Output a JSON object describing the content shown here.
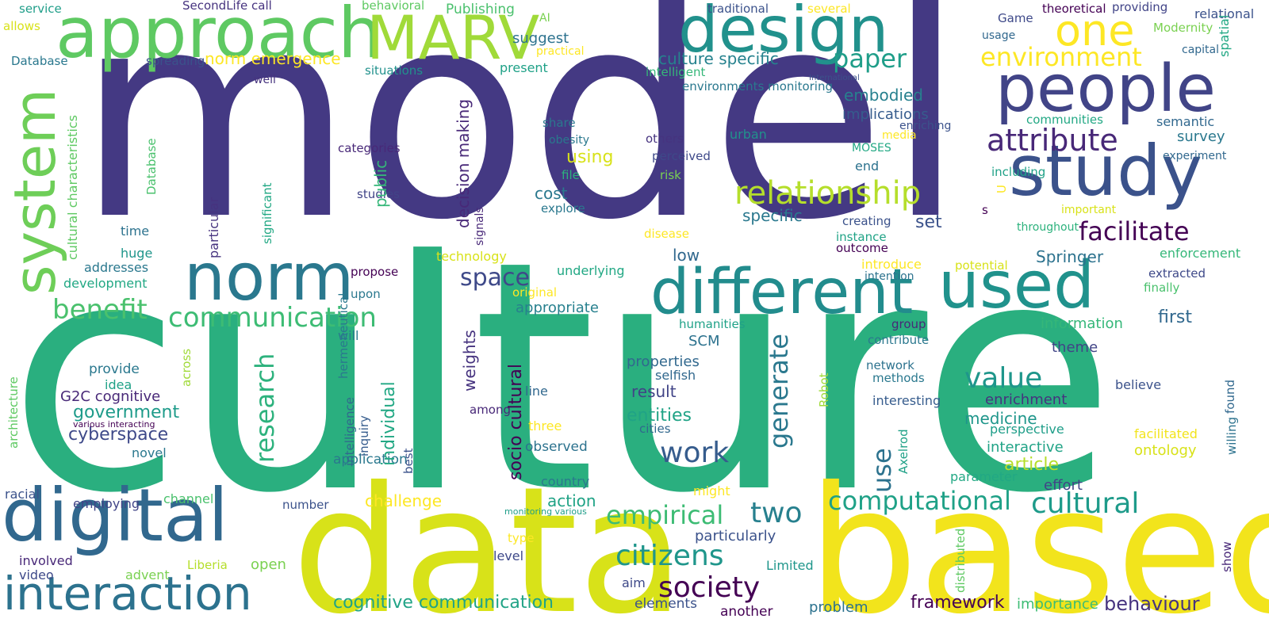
{
  "palette": {
    "dark_purple": "#440154",
    "indigo": "#443983",
    "blue": "#31688e",
    "teal": "#21918c",
    "green": "#35b779",
    "light_green": "#6ece58",
    "lime": "#b5de2b",
    "yellow": "#fde725"
  },
  "words": [
    {
      "text": "model",
      "color": "#443983"
    },
    {
      "text": "culture",
      "color": "#2aaf7f"
    },
    {
      "text": "data",
      "color": "#d8e219"
    },
    {
      "text": "based",
      "color": "#f2e41c"
    },
    {
      "text": "design",
      "color": "#21918c"
    },
    {
      "text": "approach",
      "color": "#5ec962"
    },
    {
      "text": "MARV",
      "color": "#a0da39"
    },
    {
      "text": "people",
      "color": "#414487"
    },
    {
      "text": "study",
      "color": "#3b528b"
    },
    {
      "text": "one",
      "color": "#fde725"
    },
    {
      "text": "norm",
      "color": "#2a788e"
    },
    {
      "text": "different",
      "color": "#228c8d"
    },
    {
      "text": "used",
      "color": "#20928c"
    },
    {
      "text": "digital",
      "color": "#31688e"
    },
    {
      "text": "interaction",
      "color": "#2c728e"
    },
    {
      "text": "system",
      "color": "#6ece58"
    },
    {
      "text": "relationship",
      "color": "#b5de2b"
    },
    {
      "text": "attribute",
      "color": "#482878"
    },
    {
      "text": "environment",
      "color": "#fde725"
    },
    {
      "text": "paper",
      "color": "#1f9e89"
    },
    {
      "text": "facilitate",
      "color": "#440154"
    },
    {
      "text": "communication",
      "color": "#3dbc74"
    },
    {
      "text": "benefit",
      "color": "#4ac16d"
    },
    {
      "text": "research",
      "color": "#2db27d"
    },
    {
      "text": "generate",
      "color": "#2a788e"
    },
    {
      "text": "computational",
      "color": "#1fa187"
    },
    {
      "text": "cultural",
      "color": "#1e9b8a"
    },
    {
      "text": "empirical",
      "color": "#3dbc74"
    },
    {
      "text": "two",
      "color": "#27808e"
    },
    {
      "text": "society",
      "color": "#440154"
    },
    {
      "text": "citizens",
      "color": "#1f968b"
    },
    {
      "text": "value",
      "color": "#1f968b"
    },
    {
      "text": "work",
      "color": "#365c8d"
    },
    {
      "text": "space",
      "color": "#3e4989"
    },
    {
      "text": "use",
      "color": "#2c728e"
    },
    {
      "text": "norm emergence",
      "color": "#fde725"
    },
    {
      "text": "culture specific",
      "color": "#26828e"
    },
    {
      "text": "cognitive communication",
      "color": "#20a386"
    },
    {
      "text": "framework",
      "color": "#440154"
    },
    {
      "text": "behaviour",
      "color": "#46337f"
    },
    {
      "text": "government",
      "color": "#1e9b8a"
    },
    {
      "text": "cyberspace",
      "color": "#3e4989"
    },
    {
      "text": "individual",
      "color": "#22a884"
    },
    {
      "text": "socio cultural",
      "color": "#440154"
    },
    {
      "text": "decision making",
      "color": "#482878"
    },
    {
      "text": "public",
      "color": "#35b779"
    },
    {
      "text": "weights",
      "color": "#46337f"
    },
    {
      "text": "using",
      "color": "#d8e219"
    },
    {
      "text": "cost",
      "color": "#2a788e"
    },
    {
      "text": "embodied",
      "color": "#27808e"
    },
    {
      "text": "implications",
      "color": "#365c8d"
    },
    {
      "text": "survey",
      "color": "#2a788e"
    },
    {
      "text": "semantic",
      "color": "#31688e"
    },
    {
      "text": "entities",
      "color": "#20a386"
    },
    {
      "text": "result",
      "color": "#414487"
    },
    {
      "text": "properties",
      "color": "#31688e"
    },
    {
      "text": "selfish",
      "color": "#31688e"
    },
    {
      "text": "SCM",
      "color": "#2c728e"
    },
    {
      "text": "low",
      "color": "#31688e"
    },
    {
      "text": "set",
      "color": "#3b528b"
    },
    {
      "text": "specific",
      "color": "#2a788e"
    },
    {
      "text": "Springer",
      "color": "#2c728e"
    },
    {
      "text": "first",
      "color": "#31688e"
    },
    {
      "text": "information",
      "color": "#35b779"
    },
    {
      "text": "theme",
      "color": "#414487"
    },
    {
      "text": "medicine",
      "color": "#1f968b"
    },
    {
      "text": "enrichment",
      "color": "#46337f"
    },
    {
      "text": "article",
      "color": "#b5de2b"
    },
    {
      "text": "interactive",
      "color": "#20a386"
    },
    {
      "text": "ontology",
      "color": "#d8e219"
    },
    {
      "text": "facilitated",
      "color": "#f2e41c"
    },
    {
      "text": "believe",
      "color": "#3b528b"
    },
    {
      "text": "perspective",
      "color": "#1f9e89"
    },
    {
      "text": "effort",
      "color": "#414487"
    },
    {
      "text": "parameter",
      "color": "#22a884"
    },
    {
      "text": "importance",
      "color": "#3dbc74"
    },
    {
      "text": "problem",
      "color": "#2c728e"
    },
    {
      "text": "challenge",
      "color": "#fde725"
    },
    {
      "text": "action",
      "color": "#20a386"
    },
    {
      "text": "application",
      "color": "#2a788e"
    },
    {
      "text": "observed",
      "color": "#2c728e"
    },
    {
      "text": "country",
      "color": "#2a788e"
    },
    {
      "text": "particularly",
      "color": "#3b528b"
    },
    {
      "text": "open",
      "color": "#7ad151"
    },
    {
      "text": "aim",
      "color": "#3e4989"
    },
    {
      "text": "elements",
      "color": "#3b528b"
    },
    {
      "text": "another",
      "color": "#440154"
    },
    {
      "text": "Limited",
      "color": "#1f968b"
    },
    {
      "text": "level",
      "color": "#3e4989"
    },
    {
      "text": "type",
      "color": "#fde725"
    },
    {
      "text": "might",
      "color": "#fde725"
    },
    {
      "text": "monitoring various",
      "color": "#1f9e89"
    },
    {
      "text": "three",
      "color": "#fde725"
    },
    {
      "text": "line",
      "color": "#31688e"
    },
    {
      "text": "best",
      "color": "#d8e219"
    },
    {
      "text": "among",
      "color": "#482878"
    },
    {
      "text": "inquiry",
      "color": "#3b528b"
    },
    {
      "text": "intelligence",
      "color": "#365c8d"
    },
    {
      "text": "hermeneutical",
      "color": "#31688e"
    },
    {
      "text": "will",
      "color": "#2a788e"
    },
    {
      "text": "across",
      "color": "#a0da39"
    },
    {
      "text": "provide",
      "color": "#2a788e"
    },
    {
      "text": "idea",
      "color": "#1fa187"
    },
    {
      "text": "G2C cognitive",
      "color": "#482878"
    },
    {
      "text": "various interacting",
      "color": "#440154"
    },
    {
      "text": "novel",
      "color": "#2a788e"
    },
    {
      "text": "channel",
      "color": "#4ac16d"
    },
    {
      "text": "employing",
      "color": "#414487"
    },
    {
      "text": "number",
      "color": "#3b528b"
    },
    {
      "text": "racial",
      "color": "#3b528b"
    },
    {
      "text": "involved",
      "color": "#482878"
    },
    {
      "text": "video",
      "color": "#3e4989"
    },
    {
      "text": "advent",
      "color": "#7ad151"
    },
    {
      "text": "Liberia",
      "color": "#b5de2b"
    },
    {
      "text": "architecture",
      "color": "#5ec962"
    },
    {
      "text": "development",
      "color": "#22a884"
    },
    {
      "text": "addresses",
      "color": "#2a788e"
    },
    {
      "text": "huge",
      "color": "#1f968b"
    },
    {
      "text": "time",
      "color": "#2c728e"
    },
    {
      "text": "cultural characteristics",
      "color": "#5ec962"
    },
    {
      "text": "significant",
      "color": "#22a884"
    },
    {
      "text": "particular",
      "color": "#46337f"
    },
    {
      "text": "Database",
      "color": "#4ac16d"
    },
    {
      "text": "allows",
      "color": "#2a788e"
    },
    {
      "text": "service",
      "color": "#d8e219"
    },
    {
      "text": "SecondLife call",
      "color": "#1f9e89"
    },
    {
      "text": "behavioral",
      "color": "#46337f"
    },
    {
      "text": "Publishing",
      "color": "#5ec962"
    },
    {
      "text": "traditional",
      "color": "#4ac16d"
    },
    {
      "text": "several",
      "color": "#3b528b"
    },
    {
      "text": "theoretical",
      "color": "#fde725"
    },
    {
      "text": "providing",
      "color": "#440154"
    },
    {
      "text": "relational",
      "color": "#414487"
    },
    {
      "text": "Game",
      "color": "#3b528b"
    },
    {
      "text": "usage",
      "color": "#3e4989"
    },
    {
      "text": "Modernity",
      "color": "#31688e"
    },
    {
      "text": "capital",
      "color": "#7ad151"
    },
    {
      "text": "spatial",
      "color": "#31688e"
    },
    {
      "text": "AI",
      "color": "#22a884"
    },
    {
      "text": "practical",
      "color": "#7ad151"
    },
    {
      "text": "spreading",
      "color": "#fde725"
    },
    {
      "text": "suggest",
      "color": "#3b528b"
    },
    {
      "text": "present",
      "color": "#2c728e"
    },
    {
      "text": "intelligent",
      "color": "#1fa187"
    },
    {
      "text": "International",
      "color": "#35b779"
    },
    {
      "text": "environments monitoring",
      "color": "#3b528b"
    },
    {
      "text": "well",
      "color": "#2a788e"
    },
    {
      "text": "situations",
      "color": "#46337f"
    },
    {
      "text": "communities",
      "color": "#21918c"
    },
    {
      "text": "share",
      "color": "#22a884"
    },
    {
      "text": "obesity",
      "color": "#2a788e"
    },
    {
      "text": "others",
      "color": "#2a788e"
    },
    {
      "text": "urban",
      "color": "#46337f"
    },
    {
      "text": "enriching",
      "color": "#21918c"
    },
    {
      "text": "media",
      "color": "#3b528b"
    },
    {
      "text": "MOSES",
      "color": "#fde725"
    },
    {
      "text": "experiment",
      "color": "#22a884"
    },
    {
      "text": "categories",
      "color": "#31688e"
    },
    {
      "text": "file",
      "color": "#482878"
    },
    {
      "text": "perceived",
      "color": "#2db27d"
    },
    {
      "text": "risk",
      "color": "#3e4989"
    },
    {
      "text": "end",
      "color": "#7ad151"
    },
    {
      "text": "including",
      "color": "#2c728e"
    },
    {
      "text": "U",
      "color": "#1fa187"
    },
    {
      "text": "s",
      "color": "#fde725"
    },
    {
      "text": "important",
      "color": "#440154"
    },
    {
      "text": "throughout",
      "color": "#d8e219"
    },
    {
      "text": "studies",
      "color": "#2db27d"
    },
    {
      "text": "explore",
      "color": "#414487"
    },
    {
      "text": "creating",
      "color": "#2a788e"
    },
    {
      "text": "instance",
      "color": "#3b528b"
    },
    {
      "text": "outcome",
      "color": "#20a386"
    },
    {
      "text": "disease",
      "color": "#440154"
    },
    {
      "text": "signals",
      "color": "#fde725"
    },
    {
      "text": "technology",
      "color": "#482878"
    },
    {
      "text": "introduce",
      "color": "#d8e219"
    },
    {
      "text": "potential",
      "color": "#fde725"
    },
    {
      "text": "intention",
      "color": "#d8e219"
    },
    {
      "text": "enforcement",
      "color": "#2c728e"
    },
    {
      "text": "extracted",
      "color": "#35b779"
    },
    {
      "text": "finally",
      "color": "#3e4989"
    },
    {
      "text": "propose",
      "color": "#4ac16d"
    },
    {
      "text": "upon",
      "color": "#440154"
    },
    {
      "text": "original",
      "color": "#2a788e"
    },
    {
      "text": "underlying",
      "color": "#fde725"
    },
    {
      "text": "appropriate",
      "color": "#22a884"
    },
    {
      "text": "group",
      "color": "#27808e"
    },
    {
      "text": "humanities",
      "color": "#482878"
    },
    {
      "text": "contribute",
      "color": "#1fa187"
    },
    {
      "text": "network",
      "color": "#2a788e"
    },
    {
      "text": "methods",
      "color": "#2c728e"
    },
    {
      "text": "cities",
      "color": "#2a788e"
    },
    {
      "text": "interesting",
      "color": "#31688e"
    },
    {
      "text": "Robot",
      "color": "#365c8d"
    },
    {
      "text": "Axelrod",
      "color": "#a0da39"
    },
    {
      "text": "willing",
      "color": "#1fa187"
    },
    {
      "text": "found",
      "color": "#2c728e"
    },
    {
      "text": "show",
      "color": "#31688e"
    },
    {
      "text": "distributed",
      "color": "#482878"
    },
    {
      "text": "political",
      "color": "#5ec962"
    }
  ]
}
